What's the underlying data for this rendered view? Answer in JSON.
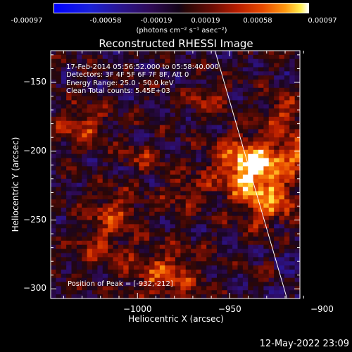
{
  "colorbar": {
    "ticks": [
      "-0.00097",
      "-0.00058",
      "-0.00019",
      "0.00019",
      "0.00058",
      "0.00097"
    ],
    "units": "(photons cm⁻² s⁻¹ asec⁻²)"
  },
  "info": {
    "time": "17-Feb-2014 05:56:52.000 to 05:58:40.000",
    "detectors": "Detectors: 3F 4F 5F 6F 7F 8F, Att 0",
    "energy": "Energy Range: 25.0 - 50.0 keV",
    "method": "Clean     Total counts: 5.45E+03",
    "peak": "Position of Peak = [-932,-212]"
  },
  "footer": {
    "date": "12-May-2022 23:09"
  },
  "chart_data": {
    "type": "heatmap",
    "title": "Reconstructed RHESSI Image",
    "xlabel": "Heliocentric X (arcsec)",
    "ylabel": "Heliocentric Y (arcsec)",
    "xlim": [
      -1047,
      -912
    ],
    "ylim": [
      -307,
      -127
    ],
    "xticks": [
      -1000,
      -950,
      -900
    ],
    "xtick_labels": [
      "−1000",
      "−950",
      "−900"
    ],
    "yticks": [
      -150,
      -200,
      -250,
      -300
    ],
    "ytick_labels": [
      "−150",
      "−200",
      "−250",
      "−300"
    ],
    "colorbar_range": [
      -0.00097,
      0.00097
    ],
    "peak": [
      -932,
      -212
    ],
    "limb_line": [
      [
        -958,
        -127
      ],
      [
        -919,
        -307
      ]
    ],
    "colors": {
      "background": "#000000",
      "cmap": [
        "#0000ff",
        "#2a1590",
        "#140418",
        "#6a0d05",
        "#b81d00",
        "#e84a00",
        "#ff9a10",
        "#ffee50",
        "#ffffff"
      ]
    }
  }
}
